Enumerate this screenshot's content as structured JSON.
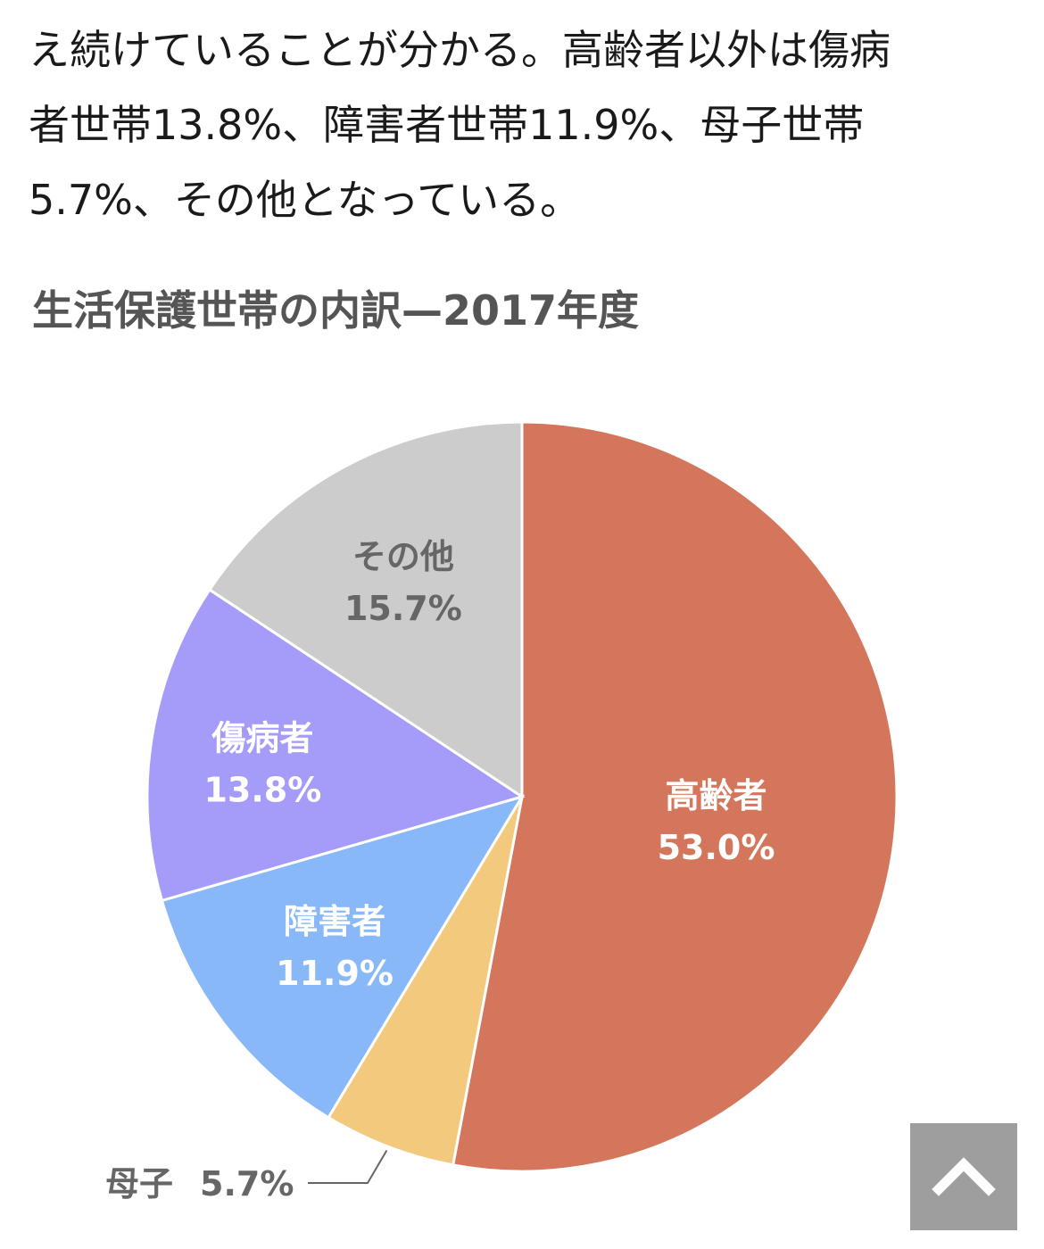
{
  "article": {
    "lines": [
      "え続けていることが分かる。高齢者以外は傷病",
      "者世帯13.8%、障害者世帯11.9%、母子世帯",
      "5.7%、その他となっている。"
    ]
  },
  "chart_data": {
    "type": "pie",
    "title": "生活保護世帯の内訳—2017年度",
    "slices": [
      {
        "name": "高齢者",
        "value": 53.0,
        "label": "53.0%",
        "color": "#d4765c",
        "text_color": "#ffffff"
      },
      {
        "name": "母子",
        "value": 5.7,
        "label": "5.7%",
        "color": "#f2c97d",
        "text_color": "#666666"
      },
      {
        "name": "障害者",
        "value": 11.9,
        "label": "11.9%",
        "color": "#88b8f8",
        "text_color": "#ffffff"
      },
      {
        "name": "傷病者",
        "value": 13.8,
        "label": "13.8%",
        "color": "#a49cf8",
        "text_color": "#ffffff"
      },
      {
        "name": "その他",
        "value": 15.7,
        "label": "15.7%",
        "color": "#cccccc",
        "text_color": "#666666"
      }
    ],
    "start": "12 o'clock",
    "direction": "clockwise",
    "legend": "none"
  },
  "ui": {
    "scroll_top_icon": "chevron-up-icon",
    "scroll_top_bg": "#9e9e9e"
  }
}
